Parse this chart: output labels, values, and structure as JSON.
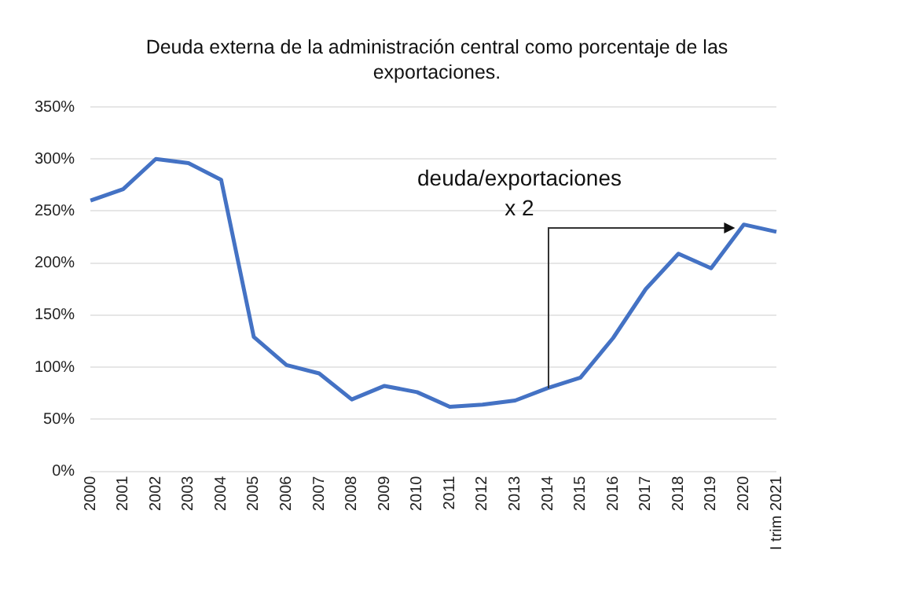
{
  "chart_data": {
    "type": "line",
    "title": "Deuda externa de la administración  central como porcentaje de las exportaciones.",
    "categories": [
      "2000",
      "2001",
      "2002",
      "2003",
      "2004",
      "2005",
      "2006",
      "2007",
      "2008",
      "2009",
      "2010",
      "2011",
      "2012",
      "2013",
      "2014",
      "2015",
      "2016",
      "2017",
      "2018",
      "2019",
      "2020",
      "I trim 2021"
    ],
    "series": [
      {
        "color": "#4472c4",
        "values": [
          260,
          271,
          300,
          296,
          280,
          129,
          102,
          94,
          69,
          82,
          76,
          62,
          64,
          68,
          80,
          90,
          128,
          175,
          209,
          195,
          237,
          230
        ]
      }
    ],
    "ylim": [
      0,
      350
    ],
    "yticks": [
      {
        "value": 0,
        "label": "0%"
      },
      {
        "value": 50,
        "label": "50%"
      },
      {
        "value": 100,
        "label": "100%"
      },
      {
        "value": 150,
        "label": "150%"
      },
      {
        "value": 200,
        "label": "200%"
      },
      {
        "value": 250,
        "label": "250%"
      },
      {
        "value": 300,
        "label": "300%"
      },
      {
        "value": 350,
        "label": "350%"
      }
    ],
    "grid": "y",
    "legend": false,
    "marker": "none",
    "line_style": "solid",
    "annotations": [
      "deuda/exportaciones",
      "x 2"
    ]
  }
}
